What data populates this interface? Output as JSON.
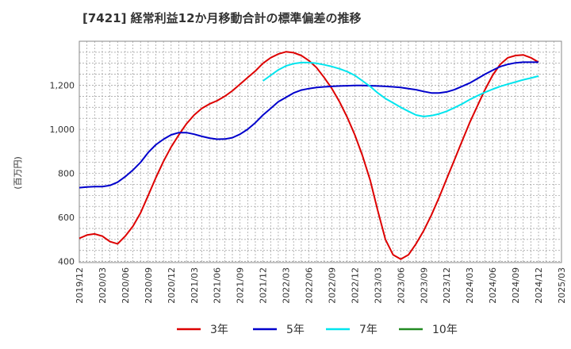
{
  "chart_data": {
    "type": "line",
    "title": "[7421]  経常利益12か月移動合計の標準偏差の推移",
    "ylabel": "(百万円)",
    "xlabel": "",
    "ylim": [
      395,
      1400
    ],
    "y_ticks": [
      400,
      600,
      800,
      1000,
      1200
    ],
    "y_tick_labels": [
      "400",
      "600",
      "800",
      "1,000",
      "1,200"
    ],
    "x_tick_labels": [
      "2019/12",
      "2020/03",
      "2020/06",
      "2020/09",
      "2020/12",
      "2021/03",
      "2021/06",
      "2021/09",
      "2021/12",
      "2022/03",
      "2022/06",
      "2022/09",
      "2022/12",
      "2023/03",
      "2023/06",
      "2023/09",
      "2023/12",
      "2024/03",
      "2024/06",
      "2024/09",
      "2024/12",
      "2025/03"
    ],
    "grid": true,
    "legend_position": "bottom",
    "series": [
      {
        "name": "3年",
        "color": "#dd0000",
        "x": [
          "2019/12",
          "2020/01",
          "2020/02",
          "2020/03",
          "2020/04",
          "2020/05",
          "2020/06",
          "2020/07",
          "2020/08",
          "2020/09",
          "2020/10",
          "2020/11",
          "2020/12",
          "2021/01",
          "2021/02",
          "2021/03",
          "2021/04",
          "2021/05",
          "2021/06",
          "2021/07",
          "2021/08",
          "2021/09",
          "2021/10",
          "2021/11",
          "2021/12",
          "2022/01",
          "2022/02",
          "2022/03",
          "2022/04",
          "2022/05",
          "2022/06",
          "2022/07",
          "2022/08",
          "2022/09",
          "2022/10",
          "2022/11",
          "2022/12",
          "2023/01",
          "2023/02",
          "2023/03",
          "2023/04",
          "2023/05",
          "2023/06",
          "2023/07",
          "2023/08",
          "2023/09",
          "2023/10",
          "2023/11",
          "2023/12",
          "2024/01",
          "2024/02",
          "2024/03",
          "2024/04",
          "2024/05",
          "2024/06",
          "2024/07",
          "2024/08",
          "2024/09",
          "2024/10",
          "2024/11",
          "2024/12"
        ],
        "values": [
          505,
          520,
          525,
          515,
          490,
          480,
          515,
          560,
          620,
          700,
          780,
          855,
          920,
          975,
          1025,
          1065,
          1095,
          1115,
          1130,
          1150,
          1175,
          1205,
          1235,
          1265,
          1300,
          1325,
          1342,
          1352,
          1348,
          1335,
          1312,
          1280,
          1235,
          1185,
          1125,
          1055,
          975,
          880,
          770,
          630,
          500,
          430,
          410,
          430,
          480,
          540,
          610,
          690,
          775,
          860,
          945,
          1030,
          1105,
          1180,
          1245,
          1295,
          1325,
          1335,
          1338,
          1325,
          1305
        ]
      },
      {
        "name": "5年",
        "color": "#0000cc",
        "x": [
          "2019/12",
          "2020/01",
          "2020/02",
          "2020/03",
          "2020/04",
          "2020/05",
          "2020/06",
          "2020/07",
          "2020/08",
          "2020/09",
          "2020/10",
          "2020/11",
          "2020/12",
          "2021/01",
          "2021/02",
          "2021/03",
          "2021/04",
          "2021/05",
          "2021/06",
          "2021/07",
          "2021/08",
          "2021/09",
          "2021/10",
          "2021/11",
          "2021/12",
          "2022/01",
          "2022/02",
          "2022/03",
          "2022/04",
          "2022/05",
          "2022/06",
          "2022/07",
          "2022/08",
          "2022/09",
          "2022/10",
          "2022/11",
          "2022/12",
          "2023/01",
          "2023/02",
          "2023/03",
          "2023/04",
          "2023/05",
          "2023/06",
          "2023/07",
          "2023/08",
          "2023/09",
          "2023/10",
          "2023/11",
          "2023/12",
          "2024/01",
          "2024/02",
          "2024/03",
          "2024/04",
          "2024/05",
          "2024/06",
          "2024/07",
          "2024/08",
          "2024/09",
          "2024/10",
          "2024/11",
          "2024/12"
        ],
        "values": [
          735,
          738,
          740,
          740,
          745,
          760,
          785,
          815,
          850,
          895,
          930,
          955,
          975,
          985,
          985,
          978,
          968,
          960,
          955,
          956,
          962,
          978,
          1000,
          1030,
          1065,
          1095,
          1125,
          1145,
          1165,
          1178,
          1185,
          1190,
          1193,
          1195,
          1197,
          1198,
          1199,
          1199,
          1198,
          1197,
          1195,
          1193,
          1190,
          1185,
          1180,
          1172,
          1165,
          1165,
          1170,
          1180,
          1195,
          1210,
          1230,
          1250,
          1268,
          1285,
          1295,
          1302,
          1305,
          1305,
          1305
        ]
      },
      {
        "name": "7年",
        "color": "#00e5ee",
        "x": [
          "2021/12",
          "2022/01",
          "2022/02",
          "2022/03",
          "2022/04",
          "2022/05",
          "2022/06",
          "2022/07",
          "2022/08",
          "2022/09",
          "2022/10",
          "2022/11",
          "2022/12",
          "2023/01",
          "2023/02",
          "2023/03",
          "2023/04",
          "2023/05",
          "2023/06",
          "2023/07",
          "2023/08",
          "2023/09",
          "2023/10",
          "2023/11",
          "2023/12",
          "2024/01",
          "2024/02",
          "2024/03",
          "2024/04",
          "2024/05",
          "2024/06",
          "2024/07",
          "2024/08",
          "2024/09",
          "2024/10",
          "2024/11",
          "2024/12"
        ],
        "values": [
          1220,
          1245,
          1270,
          1288,
          1298,
          1303,
          1303,
          1300,
          1293,
          1285,
          1275,
          1262,
          1245,
          1220,
          1195,
          1165,
          1140,
          1120,
          1100,
          1082,
          1065,
          1058,
          1062,
          1070,
          1082,
          1098,
          1115,
          1135,
          1152,
          1168,
          1182,
          1195,
          1205,
          1215,
          1225,
          1233,
          1242
        ]
      },
      {
        "name": "10年",
        "color": "#228b22",
        "x": [],
        "values": []
      }
    ]
  }
}
